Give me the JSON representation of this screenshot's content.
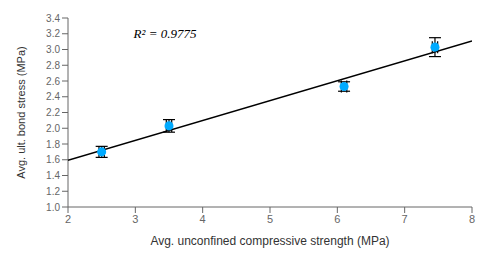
{
  "chart_data": {
    "type": "scatter",
    "xlabel": "Avg. unconfined compressive strength (MPa)",
    "ylabel": "Avg. ult. bond stress (MPa)",
    "x": [
      2.5,
      3.5,
      6.1,
      7.45
    ],
    "values": [
      1.7,
      2.03,
      2.53,
      3.03
    ],
    "y_err": [
      0.07,
      0.08,
      0.06,
      0.12
    ],
    "x_err": [
      0.04,
      0.04,
      0.04,
      0.04
    ],
    "color": "#00aaff",
    "marker": "circle",
    "trendline": {
      "x": [
        2.0,
        8.0
      ],
      "values": [
        1.593,
        3.1088
      ],
      "color": "#000000"
    },
    "annotation": {
      "text": "R² = 0.9775",
      "x": 2.9,
      "y": 3.2
    },
    "xlim": [
      2.0,
      8.0
    ],
    "ylim": [
      1.0,
      3.4
    ],
    "xticks": [
      2,
      3,
      4,
      5,
      6,
      7,
      8
    ],
    "yticks": [
      {
        "value": 1.0,
        "label": "1.0"
      },
      {
        "value": 1.2,
        "label": "1.2"
      },
      {
        "value": 1.4,
        "label": "1.4"
      },
      {
        "value": 1.6,
        "label": "1.6"
      },
      {
        "value": 1.8,
        "label": "1.8"
      },
      {
        "value": 2.0,
        "label": "2.0"
      },
      {
        "value": 2.2,
        "label": "2.2"
      },
      {
        "value": 2.4,
        "label": "2.4"
      },
      {
        "value": 2.6,
        "label": "2.6"
      },
      {
        "value": 2.8,
        "label": "2.8"
      },
      {
        "value": 3.0,
        "label": "3.0"
      },
      {
        "value": 3.2,
        "label": "3.2"
      },
      {
        "value": 3.4,
        "label": "3.4"
      }
    ],
    "grid": false
  }
}
